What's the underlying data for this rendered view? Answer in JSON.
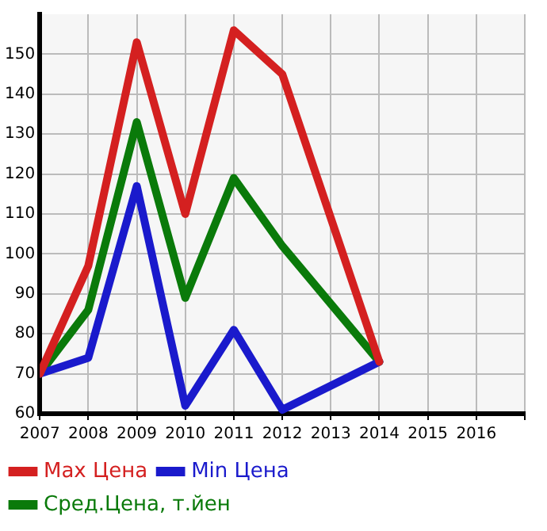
{
  "chart_data": {
    "type": "line",
    "xlim": [
      2007,
      2017
    ],
    "xticks": [
      2007,
      2008,
      2009,
      2010,
      2011,
      2012,
      2013,
      2014,
      2015,
      2016,
      {
        "value": 2017,
        "label": null
      }
    ],
    "ylim": [
      60,
      160
    ],
    "yticks": [
      60,
      70,
      80,
      90,
      100,
      110,
      120,
      130,
      140,
      150
    ],
    "grid": true,
    "legend": "bottom",
    "marker": "none",
    "line_style": "solid",
    "series": [
      {
        "name": "Max Цена",
        "color": "#d42020",
        "x": [
          2007,
          2008,
          2009,
          2010,
          2011,
          2012,
          2014
        ],
        "values": [
          70,
          97,
          153,
          110,
          156,
          145,
          73
        ]
      },
      {
        "name": "Min Цена",
        "color": "#1a1acc",
        "x": [
          2007,
          2008,
          2009,
          2010,
          2011,
          2012,
          2014
        ],
        "values": [
          70,
          74,
          117,
          62,
          81,
          61,
          73
        ]
      },
      {
        "name": "Сред.Цена, т.йен",
        "color": "#0a7a0a",
        "x": [
          2007,
          2008,
          2009,
          2010,
          2011,
          2012,
          2014
        ],
        "values": [
          70,
          86,
          133,
          89,
          119,
          102,
          73
        ]
      }
    ]
  }
}
